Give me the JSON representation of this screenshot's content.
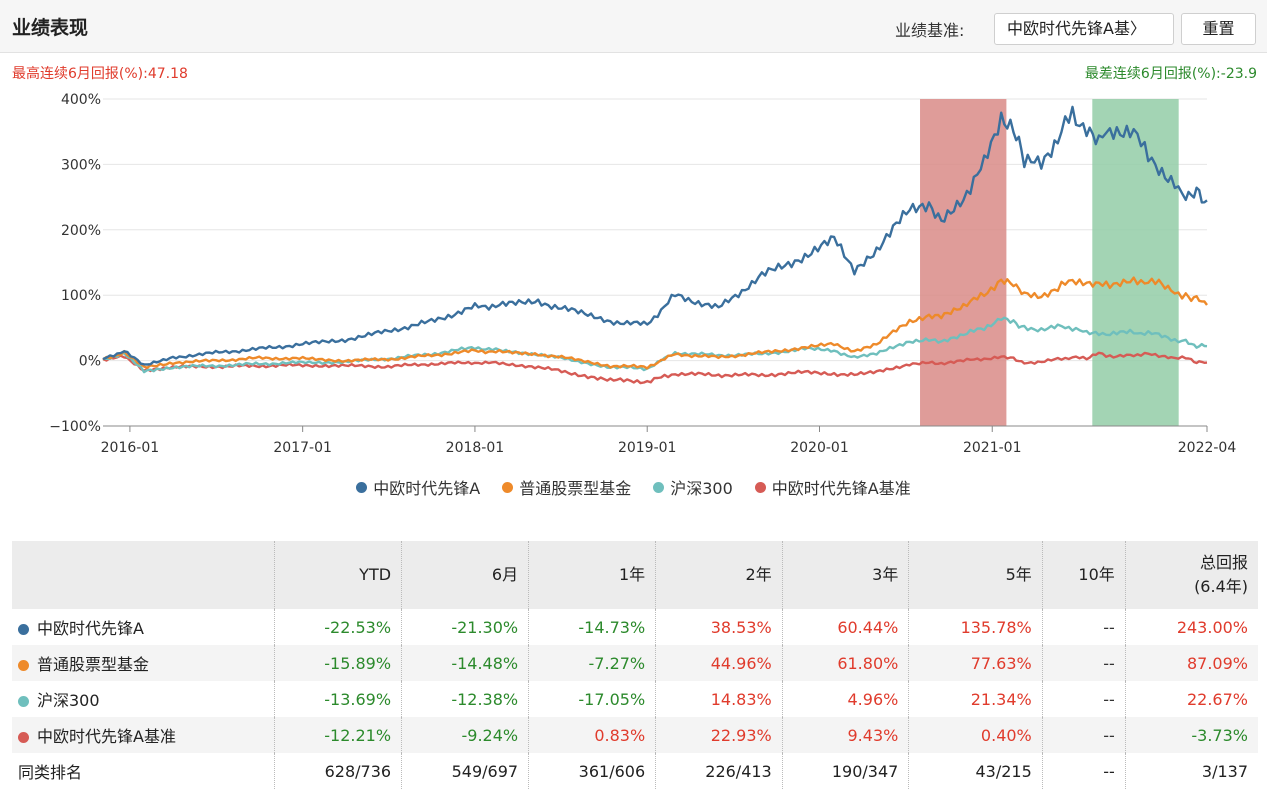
{
  "header": {
    "title": "业绩表现",
    "bench_label": "业绩基准:",
    "bench_value": "中欧时代先锋A基〉",
    "reset_label": "重置"
  },
  "summary": {
    "best": "最高连续6月回报(%):47.18",
    "worst": "最差连续6月回报(%):-23.9"
  },
  "colors": {
    "fund": "#3a6f9d",
    "peer": "#ee8a2a",
    "hs300": "#6fbfbd",
    "bench": "#d65b55",
    "best_band": "#d98b87",
    "worst_band": "#93cda7"
  },
  "chart_data": {
    "type": "line",
    "x_ticks": [
      "2016-01",
      "2017-01",
      "2018-01",
      "2019-01",
      "2020-01",
      "2021-01",
      "2022-04"
    ],
    "y_ticks": [
      "400%",
      "300%",
      "200%",
      "100%",
      "0%",
      "−100%"
    ],
    "ylim": [
      -100,
      400
    ],
    "xlim": [
      "2015-11-05",
      "2022-04-01"
    ],
    "highlights": [
      {
        "start": "2020-08-01",
        "end": "2021-01-31",
        "type": "best"
      },
      {
        "start": "2021-08-01",
        "end": "2022-01-31",
        "type": "worst"
      }
    ],
    "series": [
      {
        "name": "中欧时代先锋A",
        "color_key": "fund",
        "points": [
          [
            "2015-11-05",
            2
          ],
          [
            "2015-12-20",
            15
          ],
          [
            "2016-01-31",
            -8
          ],
          [
            "2016-04-01",
            5
          ],
          [
            "2016-07-01",
            12
          ],
          [
            "2016-10-01",
            18
          ],
          [
            "2017-01-01",
            25
          ],
          [
            "2017-04-01",
            32
          ],
          [
            "2017-07-01",
            45
          ],
          [
            "2017-10-01",
            60
          ],
          [
            "2018-01-01",
            82
          ],
          [
            "2018-03-01",
            85
          ],
          [
            "2018-05-15",
            90
          ],
          [
            "2018-08-01",
            75
          ],
          [
            "2018-10-15",
            60
          ],
          [
            "2019-01-01",
            55
          ],
          [
            "2019-03-01",
            100
          ],
          [
            "2019-06-01",
            80
          ],
          [
            "2019-09-01",
            130
          ],
          [
            "2019-12-01",
            160
          ],
          [
            "2020-02-01",
            185
          ],
          [
            "2020-03-15",
            140
          ],
          [
            "2020-05-01",
            170
          ],
          [
            "2020-07-10",
            230
          ],
          [
            "2020-08-20",
            240
          ],
          [
            "2020-09-15",
            215
          ],
          [
            "2020-11-01",
            250
          ],
          [
            "2020-12-15",
            300
          ],
          [
            "2021-01-20",
            375
          ],
          [
            "2021-02-15",
            360
          ],
          [
            "2021-03-10",
            300
          ],
          [
            "2021-04-15",
            305
          ],
          [
            "2021-05-20",
            340
          ],
          [
            "2021-06-20",
            380
          ],
          [
            "2021-07-20",
            350
          ],
          [
            "2021-08-15",
            335
          ],
          [
            "2021-09-15",
            355
          ],
          [
            "2021-10-20",
            350
          ],
          [
            "2021-11-20",
            330
          ],
          [
            "2021-12-20",
            285
          ],
          [
            "2022-01-15",
            270
          ],
          [
            "2022-02-15",
            255
          ],
          [
            "2022-03-10",
            255
          ],
          [
            "2022-04-01",
            245
          ]
        ]
      },
      {
        "name": "普通股票型基金",
        "color_key": "peer",
        "points": [
          [
            "2015-11-05",
            2
          ],
          [
            "2015-12-20",
            12
          ],
          [
            "2016-01-31",
            -10
          ],
          [
            "2016-04-01",
            -3
          ],
          [
            "2016-07-01",
            0
          ],
          [
            "2016-10-01",
            4
          ],
          [
            "2017-01-01",
            3
          ],
          [
            "2017-04-01",
            0
          ],
          [
            "2017-07-01",
            2
          ],
          [
            "2017-10-01",
            8
          ],
          [
            "2018-01-01",
            15
          ],
          [
            "2018-03-01",
            13
          ],
          [
            "2018-05-15",
            10
          ],
          [
            "2018-08-01",
            2
          ],
          [
            "2018-10-15",
            -8
          ],
          [
            "2019-01-01",
            -10
          ],
          [
            "2019-03-01",
            10
          ],
          [
            "2019-06-01",
            5
          ],
          [
            "2019-09-01",
            12
          ],
          [
            "2019-12-01",
            20
          ],
          [
            "2020-02-01",
            25
          ],
          [
            "2020-03-15",
            15
          ],
          [
            "2020-05-01",
            25
          ],
          [
            "2020-07-10",
            60
          ],
          [
            "2020-08-20",
            70
          ],
          [
            "2020-09-15",
            70
          ],
          [
            "2020-11-01",
            85
          ],
          [
            "2020-12-15",
            100
          ],
          [
            "2021-01-20",
            125
          ],
          [
            "2021-02-15",
            120
          ],
          [
            "2021-03-10",
            100
          ],
          [
            "2021-04-15",
            100
          ],
          [
            "2021-05-20",
            110
          ],
          [
            "2021-06-20",
            125
          ],
          [
            "2021-07-20",
            115
          ],
          [
            "2021-08-15",
            115
          ],
          [
            "2021-09-15",
            118
          ],
          [
            "2021-10-20",
            120
          ],
          [
            "2021-11-20",
            122
          ],
          [
            "2021-12-20",
            118
          ],
          [
            "2022-01-15",
            105
          ],
          [
            "2022-02-15",
            100
          ],
          [
            "2022-03-10",
            95
          ],
          [
            "2022-04-01",
            85
          ]
        ]
      },
      {
        "name": "沪深300",
        "color_key": "hs300",
        "points": [
          [
            "2015-11-05",
            2
          ],
          [
            "2015-12-20",
            10
          ],
          [
            "2016-01-31",
            -15
          ],
          [
            "2016-04-01",
            -10
          ],
          [
            "2016-07-01",
            -8
          ],
          [
            "2016-10-01",
            -5
          ],
          [
            "2017-01-01",
            -3
          ],
          [
            "2017-04-01",
            -2
          ],
          [
            "2017-07-01",
            3
          ],
          [
            "2017-10-01",
            10
          ],
          [
            "2018-01-01",
            20
          ],
          [
            "2018-03-01",
            15
          ],
          [
            "2018-05-15",
            10
          ],
          [
            "2018-08-01",
            0
          ],
          [
            "2018-10-15",
            -10
          ],
          [
            "2019-01-01",
            -12
          ],
          [
            "2019-03-01",
            12
          ],
          [
            "2019-06-01",
            8
          ],
          [
            "2019-09-01",
            10
          ],
          [
            "2019-12-01",
            18
          ],
          [
            "2020-02-01",
            15
          ],
          [
            "2020-03-15",
            5
          ],
          [
            "2020-05-01",
            10
          ],
          [
            "2020-07-10",
            30
          ],
          [
            "2020-08-20",
            33
          ],
          [
            "2020-09-15",
            30
          ],
          [
            "2020-11-01",
            40
          ],
          [
            "2020-12-15",
            50
          ],
          [
            "2021-01-20",
            65
          ],
          [
            "2021-02-15",
            60
          ],
          [
            "2021-03-10",
            50
          ],
          [
            "2021-04-15",
            48
          ],
          [
            "2021-05-20",
            52
          ],
          [
            "2021-06-20",
            50
          ],
          [
            "2021-07-20",
            42
          ],
          [
            "2021-08-15",
            40
          ],
          [
            "2021-09-15",
            42
          ],
          [
            "2021-10-20",
            43
          ],
          [
            "2021-11-20",
            42
          ],
          [
            "2021-12-20",
            40
          ],
          [
            "2022-01-15",
            32
          ],
          [
            "2022-02-15",
            30
          ],
          [
            "2022-03-10",
            22
          ],
          [
            "2022-04-01",
            22
          ]
        ]
      },
      {
        "name": "中欧时代先锋A基准",
        "color_key": "bench",
        "points": [
          [
            "2015-11-05",
            2
          ],
          [
            "2015-12-20",
            6
          ],
          [
            "2016-01-31",
            -14
          ],
          [
            "2016-04-01",
            -10
          ],
          [
            "2016-07-01",
            -9
          ],
          [
            "2016-10-01",
            -8
          ],
          [
            "2017-01-01",
            -7
          ],
          [
            "2017-04-01",
            -8
          ],
          [
            "2017-07-01",
            -9
          ],
          [
            "2017-10-01",
            -5
          ],
          [
            "2018-01-01",
            -3
          ],
          [
            "2018-03-01",
            -4
          ],
          [
            "2018-05-15",
            -10
          ],
          [
            "2018-08-01",
            -20
          ],
          [
            "2018-10-15",
            -30
          ],
          [
            "2019-01-01",
            -32
          ],
          [
            "2019-03-01",
            -20
          ],
          [
            "2019-06-01",
            -22
          ],
          [
            "2019-09-01",
            -22
          ],
          [
            "2019-12-01",
            -18
          ],
          [
            "2020-02-01",
            -20
          ],
          [
            "2020-03-15",
            -22
          ],
          [
            "2020-05-01",
            -18
          ],
          [
            "2020-07-10",
            -5
          ],
          [
            "2020-08-20",
            -3
          ],
          [
            "2020-09-15",
            -5
          ],
          [
            "2020-11-01",
            0
          ],
          [
            "2020-12-15",
            3
          ],
          [
            "2021-01-20",
            5
          ],
          [
            "2021-02-15",
            3
          ],
          [
            "2021-03-10",
            -3
          ],
          [
            "2021-04-15",
            -2
          ],
          [
            "2021-05-20",
            2
          ],
          [
            "2021-06-20",
            5
          ],
          [
            "2021-07-20",
            3
          ],
          [
            "2021-08-15",
            12
          ],
          [
            "2021-09-15",
            5
          ],
          [
            "2021-10-20",
            8
          ],
          [
            "2021-11-20",
            10
          ],
          [
            "2021-12-20",
            8
          ],
          [
            "2022-01-15",
            5
          ],
          [
            "2022-02-15",
            4
          ],
          [
            "2022-03-10",
            -2
          ],
          [
            "2022-04-01",
            -3
          ]
        ]
      }
    ]
  },
  "table": {
    "headers": [
      "",
      "YTD",
      "6月",
      "1年",
      "2年",
      "3年",
      "5年",
      "10年"
    ],
    "header_total_1": "总回报",
    "header_total_2": "(6.4年)",
    "rows": [
      {
        "name": "中欧时代先锋A",
        "color_key": "fund",
        "values": [
          "-22.53%",
          "-21.30%",
          "-14.73%",
          "38.53%",
          "60.44%",
          "135.78%",
          "--",
          "243.00%"
        ]
      },
      {
        "name": "普通股票型基金",
        "color_key": "peer",
        "values": [
          "-15.89%",
          "-14.48%",
          "-7.27%",
          "44.96%",
          "61.80%",
          "77.63%",
          "--",
          "87.09%"
        ]
      },
      {
        "name": "沪深300",
        "color_key": "hs300",
        "values": [
          "-13.69%",
          "-12.38%",
          "-17.05%",
          "14.83%",
          "4.96%",
          "21.34%",
          "--",
          "22.67%"
        ]
      },
      {
        "name": "中欧时代先锋A基准",
        "color_key": "bench",
        "values": [
          "-12.21%",
          "-9.24%",
          "0.83%",
          "22.93%",
          "9.43%",
          "0.40%",
          "--",
          "-3.73%"
        ]
      }
    ],
    "rank": {
      "name": "同类排名",
      "values": [
        "628/736",
        "549/697",
        "361/606",
        "226/413",
        "190/347",
        "43/215",
        "--",
        "3/137"
      ]
    }
  }
}
